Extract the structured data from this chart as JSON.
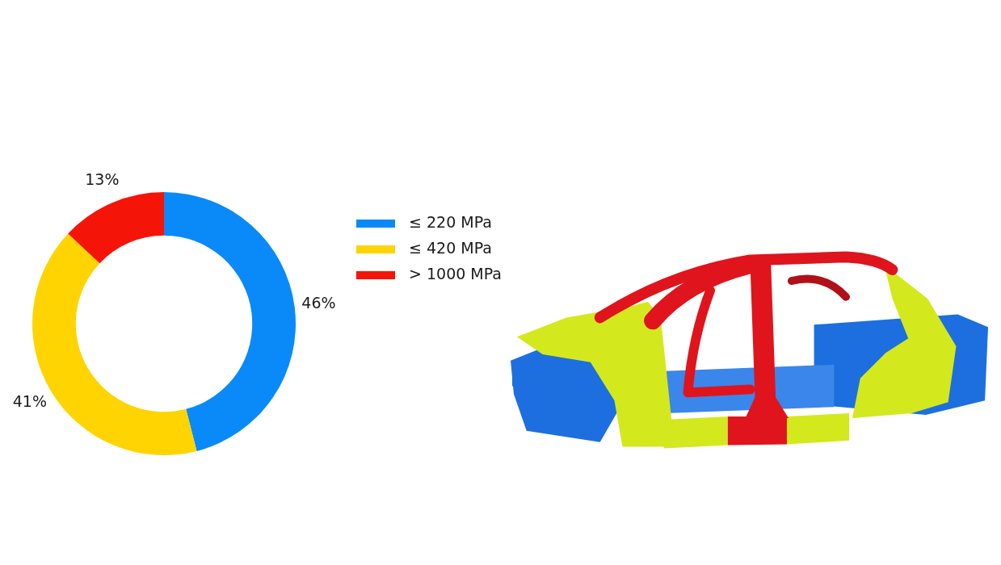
{
  "chart_data": {
    "type": "donut",
    "categories": [
      "≤ 220 MPa",
      "≤ 420 MPa",
      "> 1000 MPa"
    ],
    "values": [
      46,
      41,
      13
    ],
    "colors": [
      "#0a8af8",
      "#ffd400",
      "#f51408"
    ],
    "value_labels": [
      "46%",
      "41%",
      "13%"
    ],
    "legend": "right"
  }
}
